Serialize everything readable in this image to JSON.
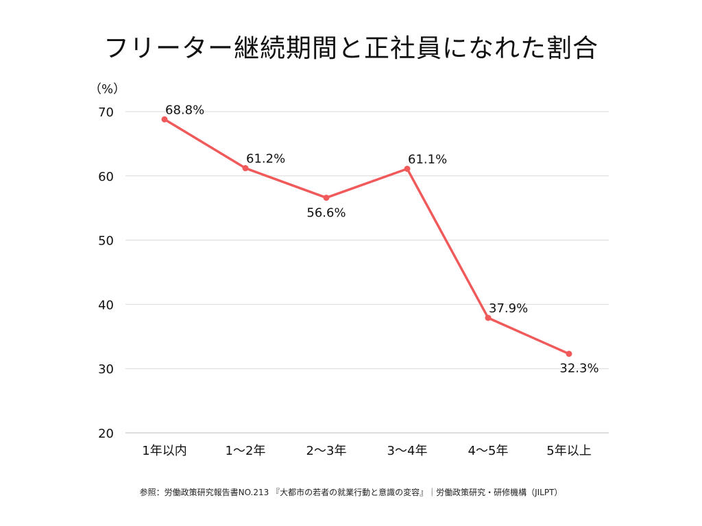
{
  "chart_data": {
    "type": "line",
    "title": "フリーター継続期間と正社員になれた割合",
    "ylabel": "（%）",
    "xlabel": "",
    "categories": [
      "1年以内",
      "1〜2年",
      "2〜3年",
      "3〜4年",
      "4〜5年",
      "5年以上"
    ],
    "series": [
      {
        "values": [
          68.8,
          61.2,
          56.6,
          61.1,
          37.9,
          32.3
        ],
        "labels": [
          "68.8%",
          "61.2%",
          "56.6%",
          "61.1%",
          "37.9%",
          "32.3%"
        ],
        "color": "#F05A5B"
      }
    ],
    "ylim": [
      20,
      70
    ],
    "yticks": [
      70,
      60,
      50,
      40,
      30,
      20
    ],
    "grid": true,
    "legend": "none"
  },
  "source": "参照：労働政策研究報告書NO.213 『大都市の若者の就業行動と意識の変容』｜労働政策研究・研修機構（JILPT）"
}
